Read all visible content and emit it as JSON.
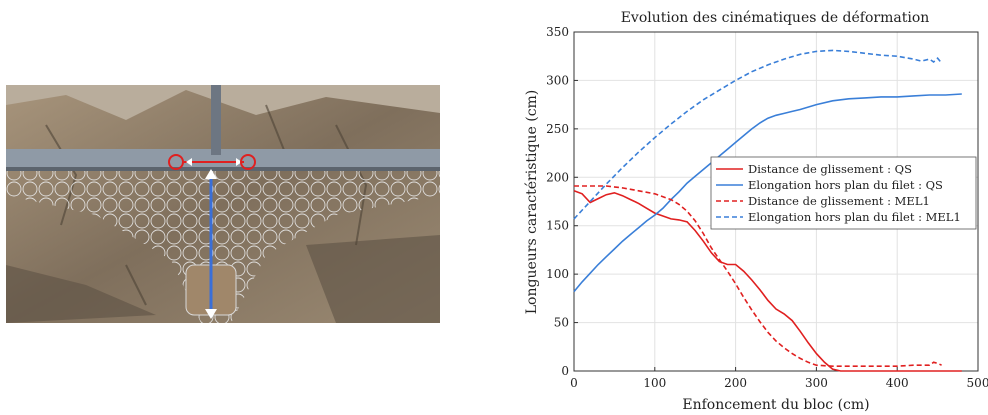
{
  "photo": {
    "description_icon": "rockfall-net-photo",
    "colors": {
      "sky": "#cfcfc8",
      "rock": "#8c7b66",
      "beam": "#8f9aa6",
      "marker_red": "#e02020",
      "marker_blue": "#3a6fd8"
    }
  },
  "chart_data": {
    "type": "line",
    "title": "Evolution des cinématiques de déformation",
    "xlabel": "Enfoncement du bloc (cm)",
    "ylabel": "Longueurs caractéristique (cm)",
    "xlim": [
      0,
      500
    ],
    "ylim": [
      0,
      350
    ],
    "xticks": [
      0,
      100,
      200,
      300,
      400,
      500
    ],
    "yticks": [
      0,
      50,
      100,
      150,
      200,
      250,
      300,
      350
    ],
    "grid": true,
    "legend_position": "center-right",
    "series": [
      {
        "name": "Distance de glissement : QS",
        "color": "#e02020",
        "dash": "solid",
        "points": [
          [
            0,
            186
          ],
          [
            10,
            183
          ],
          [
            20,
            174
          ],
          [
            30,
            178
          ],
          [
            40,
            182
          ],
          [
            50,
            184
          ],
          [
            60,
            181
          ],
          [
            70,
            177
          ],
          [
            80,
            173
          ],
          [
            90,
            168
          ],
          [
            100,
            163
          ],
          [
            110,
            160
          ],
          [
            120,
            157
          ],
          [
            130,
            156
          ],
          [
            140,
            154
          ],
          [
            150,
            145
          ],
          [
            160,
            134
          ],
          [
            170,
            122
          ],
          [
            180,
            113
          ],
          [
            190,
            110
          ],
          [
            200,
            110
          ],
          [
            210,
            103
          ],
          [
            220,
            94
          ],
          [
            230,
            84
          ],
          [
            240,
            73
          ],
          [
            250,
            64
          ],
          [
            260,
            59
          ],
          [
            270,
            52
          ],
          [
            280,
            41
          ],
          [
            290,
            29
          ],
          [
            300,
            18
          ],
          [
            310,
            9
          ],
          [
            320,
            2
          ],
          [
            330,
            0
          ],
          [
            360,
            0
          ],
          [
            400,
            0
          ],
          [
            450,
            0
          ],
          [
            480,
            0
          ]
        ]
      },
      {
        "name": "Elongation hors plan du filet : QS",
        "color": "#3a7fd8",
        "dash": "solid",
        "points": [
          [
            0,
            82
          ],
          [
            10,
            92
          ],
          [
            20,
            101
          ],
          [
            30,
            110
          ],
          [
            40,
            118
          ],
          [
            50,
            126
          ],
          [
            60,
            134
          ],
          [
            70,
            141
          ],
          [
            80,
            148
          ],
          [
            90,
            155
          ],
          [
            100,
            161
          ],
          [
            110,
            168
          ],
          [
            120,
            177
          ],
          [
            130,
            185
          ],
          [
            140,
            194
          ],
          [
            150,
            201
          ],
          [
            160,
            208
          ],
          [
            170,
            215
          ],
          [
            180,
            222
          ],
          [
            190,
            229
          ],
          [
            200,
            236
          ],
          [
            210,
            243
          ],
          [
            220,
            250
          ],
          [
            230,
            256
          ],
          [
            240,
            261
          ],
          [
            250,
            264
          ],
          [
            260,
            266
          ],
          [
            270,
            268
          ],
          [
            280,
            270
          ],
          [
            300,
            275
          ],
          [
            320,
            279
          ],
          [
            340,
            281
          ],
          [
            360,
            282
          ],
          [
            380,
            283
          ],
          [
            400,
            283
          ],
          [
            420,
            284
          ],
          [
            440,
            285
          ],
          [
            460,
            285
          ],
          [
            480,
            286
          ]
        ]
      },
      {
        "name": "Distance de glissement : MEL1",
        "color": "#e02020",
        "dash": "dashed",
        "points": [
          [
            0,
            191
          ],
          [
            20,
            191
          ],
          [
            40,
            191
          ],
          [
            60,
            189
          ],
          [
            80,
            186
          ],
          [
            100,
            183
          ],
          [
            120,
            177
          ],
          [
            130,
            172
          ],
          [
            140,
            165
          ],
          [
            150,
            155
          ],
          [
            160,
            142
          ],
          [
            170,
            127
          ],
          [
            180,
            115
          ],
          [
            190,
            103
          ],
          [
            200,
            90
          ],
          [
            210,
            76
          ],
          [
            220,
            63
          ],
          [
            230,
            51
          ],
          [
            240,
            40
          ],
          [
            250,
            31
          ],
          [
            260,
            24
          ],
          [
            270,
            18
          ],
          [
            280,
            13
          ],
          [
            290,
            9
          ],
          [
            300,
            6
          ],
          [
            320,
            5
          ],
          [
            340,
            5
          ],
          [
            360,
            5
          ],
          [
            380,
            5
          ],
          [
            400,
            5
          ],
          [
            420,
            6
          ],
          [
            440,
            6
          ],
          [
            445,
            9
          ],
          [
            450,
            8
          ],
          [
            455,
            6
          ]
        ]
      },
      {
        "name": "Elongation hors plan du filet : MEL1",
        "color": "#3a7fd8",
        "dash": "dashed",
        "points": [
          [
            0,
            157
          ],
          [
            20,
            175
          ],
          [
            40,
            193
          ],
          [
            60,
            210
          ],
          [
            80,
            226
          ],
          [
            100,
            241
          ],
          [
            120,
            255
          ],
          [
            140,
            268
          ],
          [
            160,
            280
          ],
          [
            180,
            290
          ],
          [
            200,
            300
          ],
          [
            220,
            309
          ],
          [
            240,
            316
          ],
          [
            260,
            322
          ],
          [
            280,
            327
          ],
          [
            300,
            330
          ],
          [
            320,
            331
          ],
          [
            340,
            330
          ],
          [
            360,
            328
          ],
          [
            380,
            326
          ],
          [
            400,
            325
          ],
          [
            420,
            322
          ],
          [
            430,
            320
          ],
          [
            440,
            322
          ],
          [
            445,
            319
          ],
          [
            450,
            323
          ],
          [
            455,
            318
          ]
        ]
      }
    ]
  }
}
